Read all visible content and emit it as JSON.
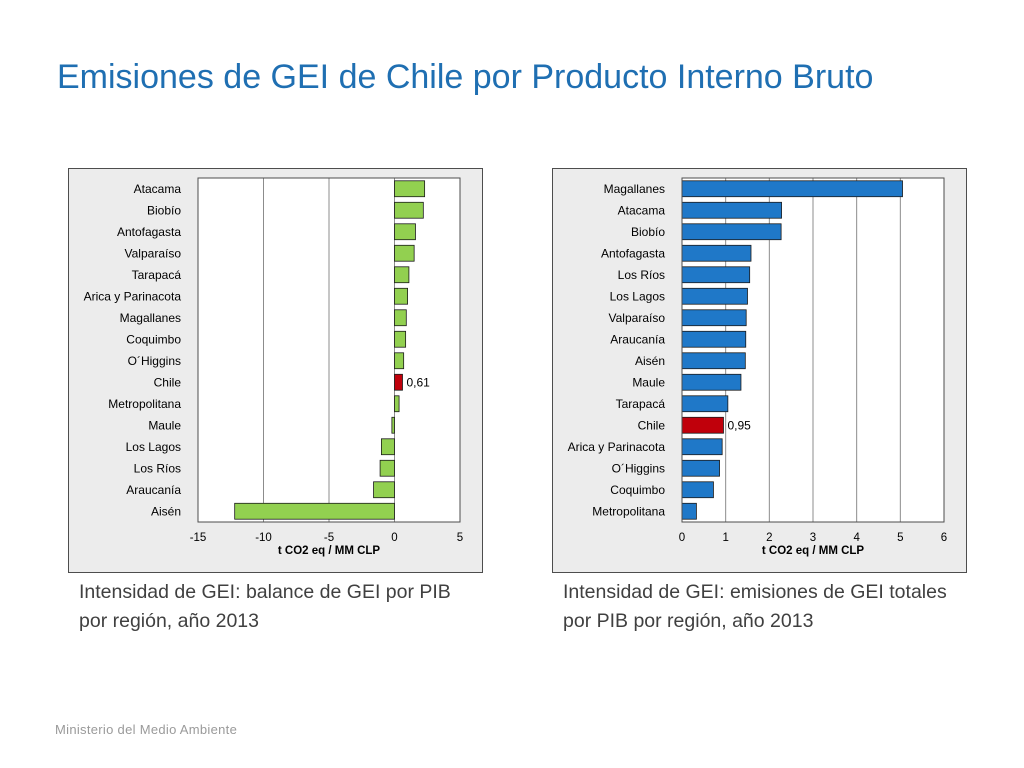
{
  "title": "Emisiones de GEI de Chile por Producto Interno Bruto",
  "captions": {
    "left": "Intensidad de GEI: balance de GEI por PIB por región, año 2013",
    "right": "Intensidad de GEI: emisiones de GEI totales por PIB por región, año 2013"
  },
  "footer": "Ministerio del Medio Ambiente",
  "colors": {
    "title": "#1f6fb2",
    "green": "#92d050",
    "blue": "#1f78c8",
    "red": "#c0000b"
  },
  "chart_data": [
    {
      "type": "bar",
      "orientation": "horizontal",
      "xlabel": "t CO2 eq / MM CLP",
      "xlim": [
        -15,
        5
      ],
      "xticks": [
        -15,
        -10,
        -5,
        0,
        5
      ],
      "grid": true,
      "bar_color": "#92d050",
      "highlight": {
        "category": "Chile",
        "color": "#c0000b",
        "label": "0,61"
      },
      "categories": [
        "Atacama",
        "Biobío",
        "Antofagasta",
        "Valparaíso",
        "Tarapacá",
        "Arica y Parinacota",
        "Magallanes",
        "Coquimbo",
        "O´Higgins",
        "Chile",
        "Metropolitana",
        "Maule",
        "Los Lagos",
        "Los Ríos",
        "Araucanía",
        "Aisén"
      ],
      "values": [
        2.3,
        2.2,
        1.6,
        1.5,
        1.1,
        1.0,
        0.9,
        0.85,
        0.7,
        0.61,
        0.35,
        -0.2,
        -1.0,
        -1.1,
        -1.6,
        -12.2
      ]
    },
    {
      "type": "bar",
      "orientation": "horizontal",
      "xlabel": "t CO2 eq / MM CLP",
      "xlim": [
        0,
        6
      ],
      "xticks": [
        0,
        1,
        2,
        3,
        4,
        5,
        6
      ],
      "grid": true,
      "bar_color": "#1f78c8",
      "highlight": {
        "category": "Chile",
        "color": "#c0000b",
        "label": "0,95"
      },
      "categories": [
        "Magallanes",
        "Atacama",
        "Biobío",
        "Antofagasta",
        "Los Ríos",
        "Los Lagos",
        "Valparaíso",
        "Araucanía",
        "Aisén",
        "Maule",
        "Tarapacá",
        "Chile",
        "Arica y Parinacota",
        "O´Higgins",
        "Coquimbo",
        "Metropolitana"
      ],
      "values": [
        5.05,
        2.28,
        2.27,
        1.58,
        1.55,
        1.5,
        1.47,
        1.46,
        1.45,
        1.35,
        1.05,
        0.95,
        0.92,
        0.86,
        0.72,
        0.33
      ]
    }
  ]
}
